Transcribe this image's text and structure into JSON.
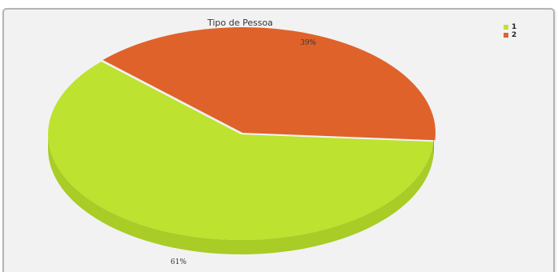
{
  "chart_data": {
    "type": "pie",
    "title": "Tipo de Pessoa",
    "slices": [
      {
        "name": "1",
        "value": 61,
        "label": "61%",
        "color": "#bde22f",
        "side_color": "#a9cc26"
      },
      {
        "name": "2",
        "value": 39,
        "label": "39%",
        "color": "#e0622b",
        "side_color": "#c9531f"
      }
    ],
    "legend_position": "top-right",
    "three_d": true
  }
}
